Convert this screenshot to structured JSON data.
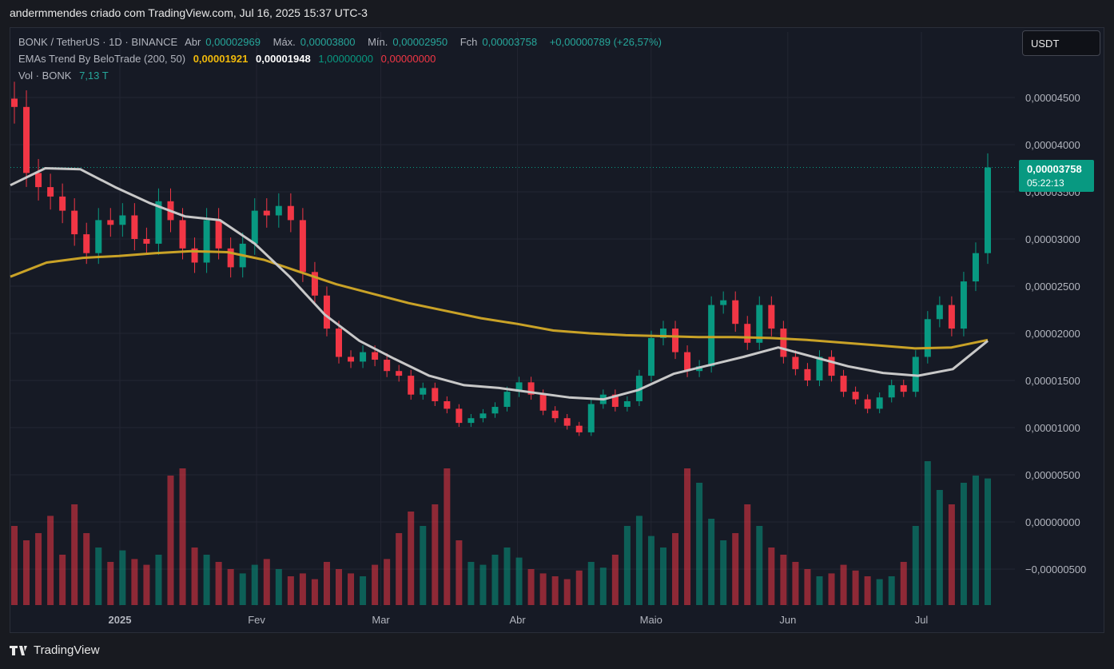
{
  "header": {
    "title": "andermmendes criado com TradingView.com, Jul 16, 2025 15:37 UTC-3"
  },
  "legend": {
    "symbol": "BONK / TetherUS · 1D · BINANCE",
    "open_label": "Abr",
    "open": "0,00002969",
    "high_label": "Máx.",
    "high": "0,00003800",
    "low_label": "Mín.",
    "low": "0,00002950",
    "close_label": "Fch",
    "close": "0,00003758",
    "change": "+0,00000789 (+26,57%)",
    "ema_label": "EMAs Trend By BeloTrade (200, 50)",
    "ema200_val": "0,00001921",
    "ema50_val": "0,00001948",
    "ema_sig1": "1,00000000",
    "ema_sig2": "0,00000000",
    "vol_label": "Vol · BONK",
    "vol_val": "7,13 T"
  },
  "currency_button": "USDT",
  "price_tag": {
    "price": "0,00003758",
    "countdown": "05:22:13"
  },
  "brand": "TradingView",
  "colors": {
    "up": "#089981",
    "down": "#f23645",
    "ema200": "#c9a227",
    "ema50": "#c8c8c8",
    "bg": "#161a25",
    "grid": "#232632"
  },
  "chart_data": {
    "type": "candlestick",
    "title": "BONK / TetherUS · 1D · BINANCE",
    "y_ticks": [
      "0,00004500",
      "0,00004000",
      "0,00003500",
      "0,00003000",
      "0,00002500",
      "0,00002000",
      "0,00001500",
      "0,00001000",
      "0,00000500",
      "0,00000000",
      "−0,00000500"
    ],
    "y_tick_values": [
      4.5,
      4.0,
      3.5,
      3.0,
      2.5,
      2.0,
      1.5,
      1.0,
      0.5,
      0.0,
      -0.5
    ],
    "y_unit": "1e-5 USDT",
    "x_ticks": [
      {
        "label": "2025",
        "week": 6
      },
      {
        "label": "Fev",
        "week": 10.4
      },
      {
        "label": "Mar",
        "week": 14.4
      },
      {
        "label": "Abr",
        "week": 18.8
      },
      {
        "label": "Maio",
        "week": 23.1
      },
      {
        "label": "Jun",
        "week": 27.5
      },
      {
        "label": "Jul",
        "week": 31.8
      }
    ],
    "week_count": 33,
    "last_close": 3.758,
    "closes": [
      4.4,
      3.7,
      3.55,
      3.45,
      3.3,
      3.05,
      2.85,
      3.2,
      3.15,
      3.25,
      3.0,
      2.95,
      3.4,
      3.2,
      2.9,
      2.75,
      3.2,
      2.9,
      2.7,
      2.95,
      3.3,
      3.25,
      3.35,
      3.2,
      2.65,
      2.4,
      2.05,
      1.75,
      1.7,
      1.8,
      1.72,
      1.6,
      1.55,
      1.35,
      1.42,
      1.28,
      1.2,
      1.05,
      1.1,
      1.15,
      1.22,
      1.38,
      1.48,
      1.35,
      1.18,
      1.1,
      1.02,
      0.95,
      1.25,
      1.35,
      1.22,
      1.28,
      1.55,
      1.95,
      2.05,
      1.8,
      1.6,
      1.65,
      2.3,
      2.35,
      2.1,
      1.9,
      2.3,
      2.05,
      1.75,
      1.62,
      1.5,
      1.75,
      1.55,
      1.38,
      1.3,
      1.2,
      1.32,
      1.45,
      1.38,
      1.75,
      2.15,
      2.3,
      2.05,
      2.55,
      2.85,
      3.758
    ],
    "ema200": [
      2.6,
      2.75,
      2.8,
      2.82,
      2.85,
      2.87,
      2.86,
      2.78,
      2.65,
      2.52,
      2.42,
      2.32,
      2.24,
      2.16,
      2.1,
      2.03,
      2.0,
      1.98,
      1.97,
      1.96,
      1.96,
      1.95,
      1.93,
      1.9,
      1.87,
      1.84,
      1.85,
      1.93
    ],
    "ema50": [
      3.57,
      3.75,
      3.74,
      3.55,
      3.38,
      3.24,
      3.2,
      2.95,
      2.6,
      2.2,
      1.92,
      1.73,
      1.55,
      1.45,
      1.42,
      1.37,
      1.32,
      1.3,
      1.4,
      1.57,
      1.66,
      1.75,
      1.85,
      1.75,
      1.65,
      1.58,
      1.55,
      1.62,
      1.92
    ],
    "volume_scale": [
      0.55,
      0.45,
      0.5,
      0.62,
      0.35,
      0.7,
      0.5,
      0.4,
      0.3,
      0.38,
      0.32,
      0.28,
      0.35,
      0.9,
      0.95,
      0.4,
      0.35,
      0.3,
      0.25,
      0.22,
      0.28,
      0.32,
      0.25,
      0.2,
      0.22,
      0.18,
      0.3,
      0.25,
      0.22,
      0.2,
      0.28,
      0.32,
      0.5,
      0.65,
      0.55,
      0.7,
      0.95,
      0.45,
      0.3,
      0.28,
      0.35,
      0.4,
      0.33,
      0.25,
      0.22,
      0.2,
      0.18,
      0.24,
      0.3,
      0.26,
      0.35,
      0.55,
      0.62,
      0.48,
      0.4,
      0.5,
      0.95,
      0.85,
      0.6,
      0.45,
      0.5,
      0.7,
      0.55,
      0.4,
      0.35,
      0.3,
      0.25,
      0.2,
      0.22,
      0.28,
      0.24,
      0.2,
      0.18,
      0.2,
      0.3,
      0.55,
      1.0,
      0.8,
      0.7,
      0.85,
      0.9,
      0.88
    ]
  }
}
